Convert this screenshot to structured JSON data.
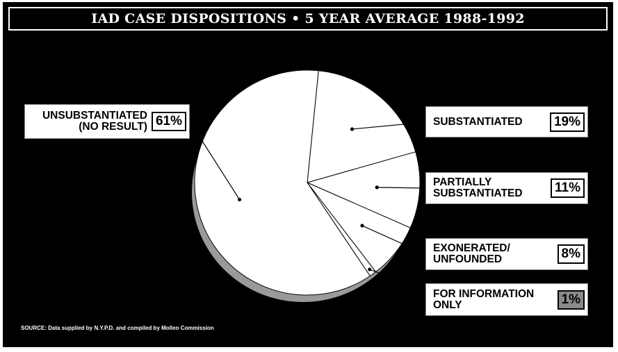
{
  "title": "IAD CASE DISPOSITIONS • 5 YEAR AVERAGE 1988-1992",
  "source": "SOURCE: Data supplied by N.Y.P.D. and compiled by Mollen Commission",
  "chart_data": {
    "type": "pie",
    "title": "IAD CASE DISPOSITIONS • 5 YEAR AVERAGE 1988-1992",
    "slices": [
      {
        "name": "SUBSTANTIATED",
        "value": 19,
        "label": "19%"
      },
      {
        "name": "PARTIALLY SUBSTANTIATED",
        "value": 11,
        "label": "11%"
      },
      {
        "name": "EXONERATED/ UNFOUNDED",
        "value": 8,
        "label": "8%"
      },
      {
        "name": "FOR INFORMATION ONLY",
        "value": 1,
        "label": "1%"
      },
      {
        "name": "UNSUBSTANTIATED (NO RESULT)",
        "value": 61,
        "label": "61%"
      }
    ]
  },
  "labels": {
    "unsubstantiated": {
      "line1": "UNSUBSTANTIATED",
      "line2": "(NO RESULT)",
      "pct": "61%"
    },
    "substantiated": {
      "line1": "SUBSTANTIATED",
      "pct": "19%"
    },
    "partially": {
      "line1": "PARTIALLY",
      "line2": "SUBSTANTIATED",
      "pct": "11%"
    },
    "exonerated": {
      "line1": "EXONERATED/",
      "line2": "UNFOUNDED",
      "pct": "8%"
    },
    "info_only": {
      "line1": "FOR INFORMATION",
      "line2": "ONLY",
      "pct": "1%"
    }
  }
}
